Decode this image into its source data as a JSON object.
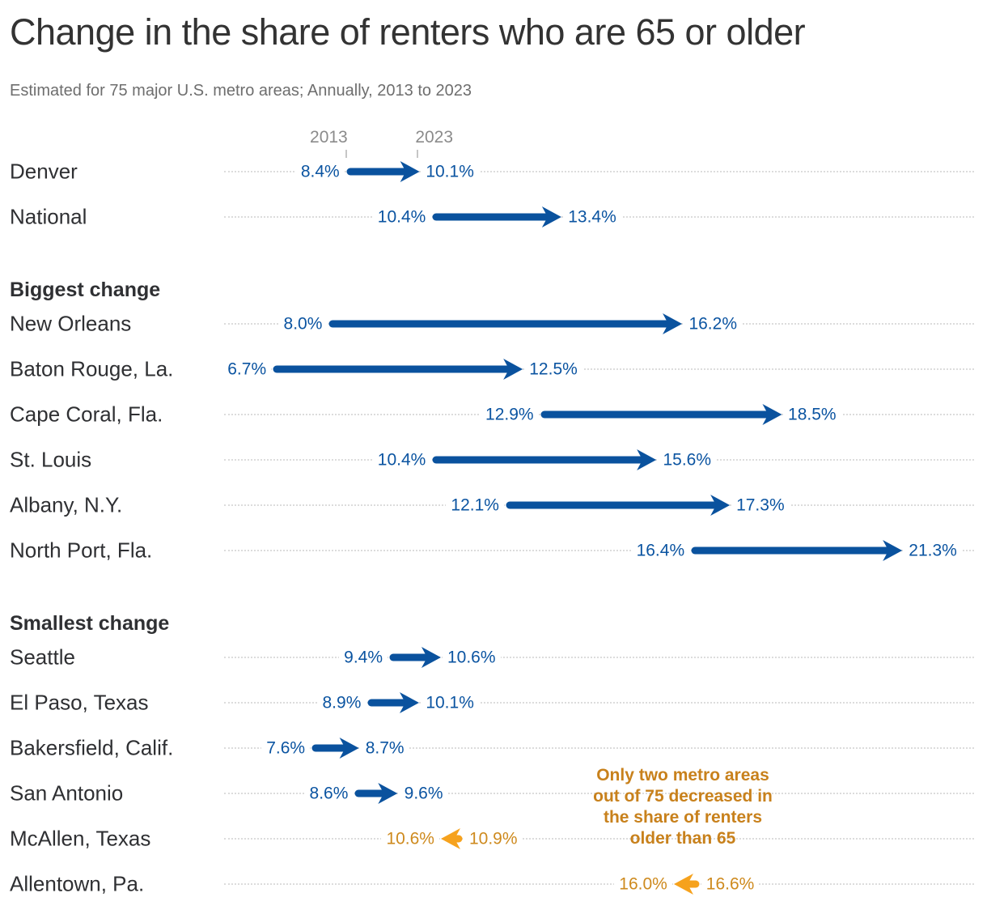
{
  "header": {
    "title": "Change in the share of renters who are 65 or older",
    "subtitle": "Estimated for 75 major U.S. metro areas; Annually, 2013 to 2023"
  },
  "chart_data": {
    "type": "arrow-range",
    "unit": "%",
    "x_axis": {
      "start_year_label": "2013",
      "end_year_label": "2023",
      "note": "year ticks align with first row (Denver) start and end values"
    },
    "axis_range": [
      5,
      23
    ],
    "grid": "dotted row guides",
    "colors": {
      "increase_arrow": "#0a529e",
      "increase_text": "#0b54a1",
      "decrease_arrow": "#f6a21d",
      "decrease_text": "#ce8a1e",
      "annotation_text": "#c8811c",
      "label_text": "#2f3033",
      "axis_text": "#8b8b8b"
    },
    "items": [
      {
        "type": "row",
        "label": "Denver",
        "start": 8.4,
        "end": 10.1,
        "start_label": "8.4%",
        "end_label": "10.1%",
        "direction": "up"
      },
      {
        "type": "row",
        "label": "National",
        "start": 10.4,
        "end": 13.4,
        "start_label": "10.4%",
        "end_label": "13.4%",
        "direction": "up"
      },
      {
        "type": "section",
        "label": "Biggest change"
      },
      {
        "type": "row",
        "label": "New Orleans",
        "start": 8.0,
        "end": 16.2,
        "start_label": "8.0%",
        "end_label": "16.2%",
        "direction": "up"
      },
      {
        "type": "row",
        "label": "Baton Rouge, La.",
        "start": 6.7,
        "end": 12.5,
        "start_label": "6.7%",
        "end_label": "12.5%",
        "direction": "up"
      },
      {
        "type": "row",
        "label": "Cape Coral, Fla.",
        "start": 12.9,
        "end": 18.5,
        "start_label": "12.9%",
        "end_label": "18.5%",
        "direction": "up"
      },
      {
        "type": "row",
        "label": "St. Louis",
        "start": 10.4,
        "end": 15.6,
        "start_label": "10.4%",
        "end_label": "15.6%",
        "direction": "up"
      },
      {
        "type": "row",
        "label": "Albany, N.Y.",
        "start": 12.1,
        "end": 17.3,
        "start_label": "12.1%",
        "end_label": "17.3%",
        "direction": "up"
      },
      {
        "type": "row",
        "label": "North Port, Fla.",
        "start": 16.4,
        "end": 21.3,
        "start_label": "16.4%",
        "end_label": "21.3%",
        "direction": "up"
      },
      {
        "type": "section",
        "label": "Smallest change"
      },
      {
        "type": "row",
        "label": "Seattle",
        "start": 9.4,
        "end": 10.6,
        "start_label": "9.4%",
        "end_label": "10.6%",
        "direction": "up"
      },
      {
        "type": "row",
        "label": "El Paso, Texas",
        "start": 8.9,
        "end": 10.1,
        "start_label": "8.9%",
        "end_label": "10.1%",
        "direction": "up"
      },
      {
        "type": "row",
        "label": "Bakersfield, Calif.",
        "start": 7.6,
        "end": 8.7,
        "start_label": "7.6%",
        "end_label": "8.7%",
        "direction": "up"
      },
      {
        "type": "row",
        "label": "San Antonio",
        "start": 8.6,
        "end": 9.6,
        "start_label": "8.6%",
        "end_label": "9.6%",
        "direction": "up"
      },
      {
        "type": "row",
        "label": "McAllen, Texas",
        "start": 10.9,
        "end": 10.6,
        "start_label": "10.9%",
        "end_label": "10.6%",
        "direction": "down"
      },
      {
        "type": "row",
        "label": "Allentown, Pa.",
        "start": 16.6,
        "end": 16.0,
        "start_label": "16.6%",
        "end_label": "16.0%",
        "direction": "down"
      }
    ],
    "annotation": {
      "lines": [
        "Only two metro areas",
        "out of 75 decreased in",
        "the share of renters",
        "older than 65"
      ]
    }
  }
}
